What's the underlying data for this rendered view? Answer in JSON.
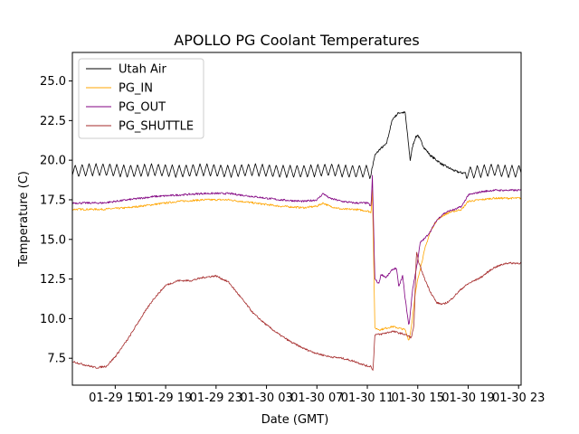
{
  "chart_data": {
    "type": "line",
    "title": "APOLLO PG Coolant Temperatures",
    "xlabel": "Date (GMT)",
    "ylabel": "Temperature (C)",
    "x_unit": "hours since 01-29 00:00 GMT",
    "xlim": [
      11.6,
      47.2
    ],
    "ylim": [
      5.8,
      26.8
    ],
    "grid": false,
    "legend_position": "top-left",
    "x_ticks": [
      {
        "x": 15,
        "label": "01-29 15"
      },
      {
        "x": 19,
        "label": "01-29 19"
      },
      {
        "x": 23,
        "label": "01-29 23"
      },
      {
        "x": 27,
        "label": "01-30 03"
      },
      {
        "x": 31,
        "label": "01-30 07"
      },
      {
        "x": 35,
        "label": "01-30 11"
      },
      {
        "x": 39,
        "label": "01-30 15"
      },
      {
        "x": 43,
        "label": "01-30 19"
      },
      {
        "x": 47,
        "label": "01-30 23"
      }
    ],
    "y_ticks": [
      {
        "y": 7.5,
        "label": "7.5"
      },
      {
        "y": 10.0,
        "label": "10.0"
      },
      {
        "y": 12.5,
        "label": "12.5"
      },
      {
        "y": 15.0,
        "label": "15.0"
      },
      {
        "y": 17.5,
        "label": "17.5"
      },
      {
        "y": 20.0,
        "label": "20.0"
      },
      {
        "y": 22.5,
        "label": "22.5"
      },
      {
        "y": 25.0,
        "label": "25.0"
      }
    ],
    "series": [
      {
        "name": "Utah Air",
        "color": "#000000",
        "x": [
          11.6,
          13.0,
          14.5,
          16.0,
          18.0,
          20.0,
          22.0,
          24.0,
          26.0,
          28.0,
          30.0,
          32.0,
          33.5,
          35.0,
          35.3,
          35.6,
          36.0,
          36.5,
          37.0,
          37.5,
          38.0,
          38.4,
          38.6,
          38.8,
          39.0,
          39.5,
          40.0,
          40.5,
          41.0,
          41.5,
          42.0,
          42.5,
          43.0,
          44.0,
          45.0,
          46.0,
          47.2
        ],
        "values": [
          19.3,
          19.4,
          19.4,
          19.3,
          19.4,
          19.3,
          19.4,
          19.3,
          19.4,
          19.3,
          19.3,
          19.4,
          19.3,
          19.3,
          19.2,
          20.3,
          20.7,
          21.0,
          22.6,
          23.0,
          23.0,
          20.0,
          20.9,
          21.4,
          21.6,
          20.8,
          20.3,
          20.0,
          19.7,
          19.5,
          19.3,
          19.2,
          19.2,
          19.3,
          19.4,
          19.3,
          19.3
        ],
        "oscillation": {
          "amplitude": 0.4,
          "period_hours": 0.55,
          "ranges": [
            [
              11.6,
              35.3
            ],
            [
              42.8,
              47.2
            ]
          ]
        }
      },
      {
        "name": "PG_IN",
        "color": "#ffa500",
        "x": [
          11.6,
          14.0,
          16.0,
          18.0,
          20.0,
          22.0,
          24.0,
          26.0,
          28.0,
          30.0,
          31.0,
          31.5,
          32.0,
          33.0,
          34.0,
          35.0,
          35.3,
          35.4,
          35.6,
          36.0,
          37.0,
          38.0,
          38.3,
          38.5,
          38.8,
          39.0,
          39.3,
          39.6,
          40.0,
          40.5,
          41.0,
          41.5,
          42.0,
          42.5,
          43.0,
          44.0,
          45.0,
          46.0,
          47.2
        ],
        "values": [
          16.9,
          16.9,
          17.0,
          17.2,
          17.4,
          17.5,
          17.5,
          17.3,
          17.1,
          17.0,
          17.1,
          17.3,
          17.1,
          16.9,
          16.9,
          16.8,
          16.7,
          18.2,
          9.4,
          9.3,
          9.5,
          9.3,
          8.6,
          9.5,
          11.5,
          12.5,
          13.5,
          14.5,
          15.5,
          16.2,
          16.5,
          16.7,
          16.8,
          16.9,
          17.4,
          17.5,
          17.6,
          17.6,
          17.6
        ]
      },
      {
        "name": "PG_OUT",
        "color": "#800080",
        "x": [
          11.6,
          14.0,
          16.0,
          18.0,
          20.0,
          22.0,
          24.0,
          26.0,
          28.0,
          30.0,
          31.0,
          31.5,
          32.0,
          33.0,
          34.0,
          35.0,
          35.3,
          35.4,
          35.6,
          35.9,
          36.1,
          36.5,
          37.0,
          37.3,
          37.5,
          37.8,
          38.0,
          38.3,
          38.6,
          38.9,
          39.2,
          39.6,
          40.0,
          40.5,
          41.0,
          41.5,
          42.0,
          42.5,
          43.0,
          44.0,
          45.0,
          46.0,
          47.2
        ],
        "values": [
          17.3,
          17.3,
          17.5,
          17.7,
          17.8,
          17.9,
          17.9,
          17.7,
          17.5,
          17.4,
          17.5,
          17.9,
          17.6,
          17.4,
          17.3,
          17.3,
          17.1,
          19.0,
          12.5,
          12.2,
          12.8,
          12.6,
          13.1,
          13.2,
          12.0,
          12.7,
          11.3,
          9.5,
          11.9,
          13.2,
          14.8,
          15.1,
          15.5,
          16.2,
          16.6,
          16.8,
          16.9,
          17.1,
          17.8,
          18.0,
          18.1,
          18.1,
          18.1
        ]
      },
      {
        "name": "PG_SHUTTLE",
        "color": "#a52a2a",
        "x": [
          11.6,
          12.5,
          13.5,
          14.3,
          15.0,
          16.0,
          17.0,
          18.0,
          19.0,
          20.0,
          21.0,
          22.0,
          23.0,
          24.0,
          25.0,
          26.0,
          27.0,
          28.0,
          29.0,
          30.0,
          31.0,
          32.0,
          33.0,
          34.0,
          35.0,
          35.3,
          35.45,
          35.6,
          36.0,
          37.0,
          38.0,
          38.5,
          38.7,
          38.9,
          39.1,
          39.5,
          40.0,
          40.5,
          41.0,
          41.5,
          42.0,
          42.5,
          43.0,
          44.0,
          45.0,
          46.0,
          46.5,
          47.2
        ],
        "values": [
          7.3,
          7.1,
          6.9,
          7.0,
          7.6,
          8.7,
          10.0,
          11.2,
          12.1,
          12.4,
          12.4,
          12.6,
          12.7,
          12.3,
          11.3,
          10.3,
          9.6,
          9.0,
          8.5,
          8.1,
          7.8,
          7.6,
          7.5,
          7.3,
          7.0,
          7.0,
          6.7,
          9.0,
          9.0,
          9.2,
          9.0,
          8.8,
          9.6,
          14.2,
          13.5,
          12.6,
          11.7,
          11.0,
          10.9,
          11.1,
          11.5,
          11.9,
          12.2,
          12.6,
          13.2,
          13.5,
          13.5,
          13.5
        ]
      }
    ]
  }
}
